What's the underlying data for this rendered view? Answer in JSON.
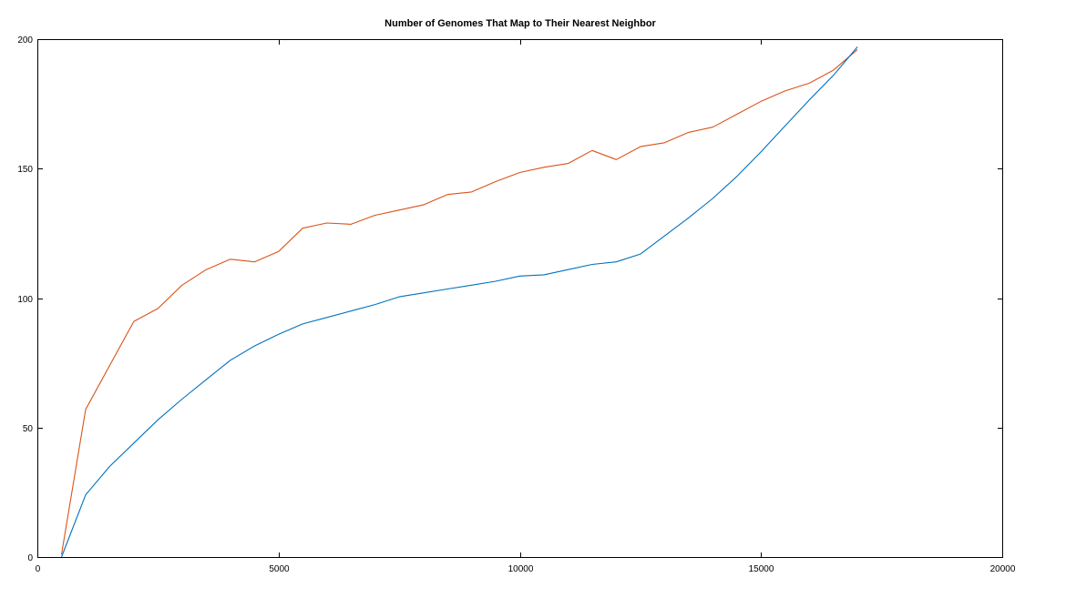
{
  "chart_data": {
    "type": "line",
    "title": "Number of Genomes That Map to Their Nearest Neighbor",
    "xlabel": "",
    "ylabel": "",
    "xlim": [
      0,
      20000
    ],
    "ylim": [
      0,
      200
    ],
    "xticks": [
      0,
      5000,
      10000,
      15000,
      20000
    ],
    "yticks": [
      0,
      50,
      100,
      150,
      200
    ],
    "grid": false,
    "series": [
      {
        "color": "#D95319",
        "x": [
          500,
          1000,
          1500,
          2000,
          2500,
          3000,
          3500,
          4000,
          4500,
          5000,
          5500,
          6000,
          6500,
          7000,
          7500,
          8000,
          8500,
          9000,
          9500,
          10000,
          10500,
          11000,
          11500,
          12000,
          12500,
          13000,
          13500,
          14000,
          14500,
          15000,
          15500,
          16000,
          16500,
          17000
        ],
        "values": [
          1,
          57,
          74,
          91,
          96,
          105,
          111,
          115,
          114,
          118,
          127,
          129,
          128.5,
          132,
          134,
          136,
          140,
          141,
          145,
          148.5,
          150.5,
          152,
          157,
          153.5,
          158.5,
          160,
          164,
          166,
          171,
          176,
          180,
          183,
          188,
          196
        ]
      },
      {
        "color": "#0072BD",
        "x": [
          500,
          1000,
          1500,
          2000,
          2500,
          3000,
          3500,
          4000,
          4500,
          5000,
          5500,
          6000,
          6500,
          7000,
          7500,
          8000,
          8500,
          9000,
          9500,
          10000,
          10500,
          11000,
          11500,
          12000,
          12500,
          13000,
          13500,
          14000,
          14500,
          15000,
          15500,
          16000,
          16500,
          17000
        ],
        "values": [
          0,
          24,
          35,
          44,
          53,
          61,
          68.5,
          76,
          81.5,
          86,
          90,
          92.5,
          95,
          97.5,
          100.5,
          102,
          103.5,
          105,
          106.5,
          108.5,
          109,
          111,
          113,
          114,
          117,
          124,
          131,
          138.5,
          147,
          156.5,
          166.5,
          176.5,
          186,
          197
        ]
      }
    ]
  }
}
